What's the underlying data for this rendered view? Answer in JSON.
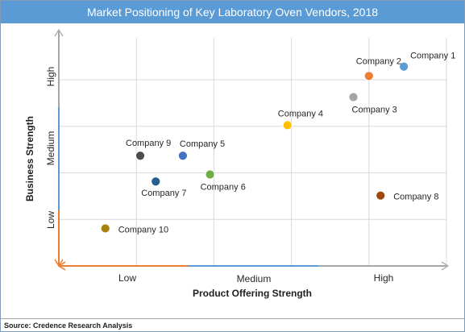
{
  "title": "Market Positioning of Key Laboratory Oven Vendors, 2018",
  "source": "Source: Credence Research Analysis",
  "chart_data": {
    "type": "scatter",
    "xlabel": "Product Offering Strength",
    "ylabel": "Business Strength",
    "x_levels": [
      "Low",
      "Medium",
      "High"
    ],
    "y_levels": [
      "Low",
      "Medium",
      "High"
    ],
    "xlim": [
      0,
      10
    ],
    "ylim": [
      0,
      10
    ],
    "grid": true,
    "points": [
      {
        "label": "Company 1",
        "x": 8.9,
        "y": 8.5,
        "color": "#5b9bd5"
      },
      {
        "label": "Company 2",
        "x": 8.0,
        "y": 8.1,
        "color": "#ed7d31"
      },
      {
        "label": "Company 3",
        "x": 7.6,
        "y": 7.2,
        "color": "#a5a5a5"
      },
      {
        "label": "Company 4",
        "x": 5.9,
        "y": 6.0,
        "color": "#ffc000"
      },
      {
        "label": "Company 5",
        "x": 3.2,
        "y": 4.7,
        "color": "#4472c4"
      },
      {
        "label": "Company 6",
        "x": 3.9,
        "y": 3.9,
        "color": "#70ad47"
      },
      {
        "label": "Company 7",
        "x": 2.5,
        "y": 3.6,
        "color": "#255e91"
      },
      {
        "label": "Company 8",
        "x": 8.3,
        "y": 3.0,
        "color": "#9e480e"
      },
      {
        "label": "Company 9",
        "x": 2.1,
        "y": 4.7,
        "color": "#4d4d4d"
      },
      {
        "label": "Company 10",
        "x": 1.2,
        "y": 1.6,
        "color": "#a5840e"
      }
    ]
  }
}
